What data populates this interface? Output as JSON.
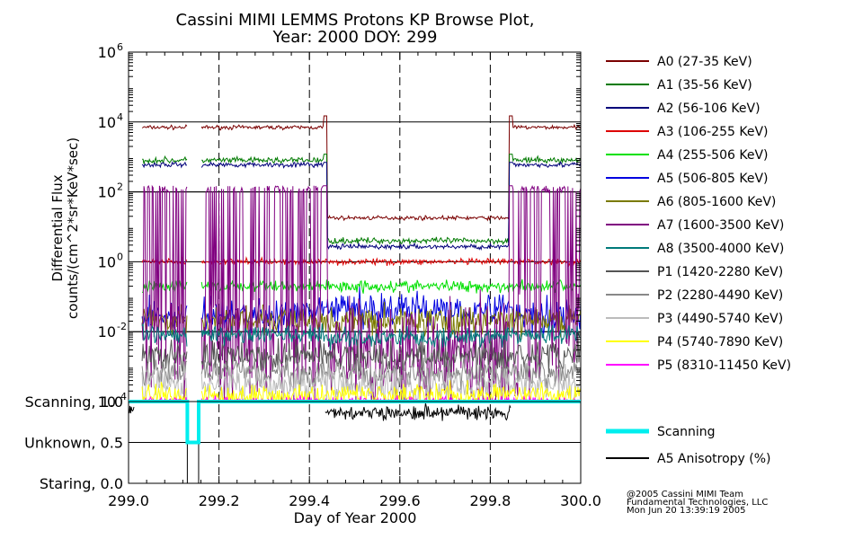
{
  "title": {
    "line1": "Cassini MIMI LEMMS Protons KP Browse Plot,",
    "line2": "Year: 2000 DOY: 299"
  },
  "credit": {
    "line1": "@2005 Cassini MIMI Team",
    "line2": "Fundamental Technologies, LLC",
    "line3": "Mon Jun 20 13:39:19 2005"
  },
  "chart_data": [
    {
      "type": "line",
      "panel": "flux",
      "ylabel_line1": "Differential Flux",
      "ylabel_line2": "counts/(cm^2*sr*KeV*sec)",
      "yscale": "log",
      "ylim": [
        0.0001,
        1000000
      ],
      "yticks": [
        {
          "base": "10",
          "exp": "-4",
          "value": 0.0001
        },
        {
          "base": "10",
          "exp": "-2",
          "value": 0.01
        },
        {
          "base": "10",
          "exp": "0",
          "value": 1
        },
        {
          "base": "10",
          "exp": "2",
          "value": 100
        },
        {
          "base": "10",
          "exp": "4",
          "value": 10000
        },
        {
          "base": "10",
          "exp": "6",
          "value": 1000000
        }
      ],
      "xlim": [
        299.0,
        300.0
      ],
      "data_gap": [
        299.13,
        299.16
      ],
      "mode_change": [
        299.435,
        299.845
      ],
      "series": [
        {
          "name": "A0 (27-35 KeV)",
          "color": "#7a0000",
          "level_high": 7000,
          "level_low": 18,
          "jitter": 0.04,
          "spike": 15000
        },
        {
          "name": "A1 (35-56 KeV)",
          "color": "#007a00",
          "level_high": 800,
          "level_low": 4,
          "jitter": 0.06,
          "spike": 1200
        },
        {
          "name": "A2 (56-106 KeV)",
          "color": "#00007a",
          "level_high": 600,
          "level_low": 2.7,
          "jitter": 0.05,
          "spike": 700
        },
        {
          "name": "A3 (106-255 KeV)",
          "color": "#dd0000",
          "level_high": 1.0,
          "level_low": 1.0,
          "jitter": 0.06,
          "spike": 1.0
        },
        {
          "name": "A4 (255-506 KeV)",
          "color": "#00e000",
          "level_high": 0.2,
          "level_low": 0.2,
          "jitter": 0.12,
          "spike": 0.2
        },
        {
          "name": "A5 (506-805 KeV)",
          "color": "#0000e0",
          "level_high": 0.03,
          "level_low": 0.045,
          "jitter": 0.35,
          "spike": 0.05
        },
        {
          "name": "A6 (805-1600 KeV)",
          "color": "#7a7a00",
          "level_high": 0.02,
          "level_low": 0.02,
          "jitter": 0.3,
          "spike": 0.02
        },
        {
          "name": "A7 (1600-3500 KeV)",
          "color": "#800080",
          "level_high": 0.003,
          "level_low": 0.003,
          "jitter": 1.2,
          "spike": 150
        },
        {
          "name": "A8 (3500-4000 KeV)",
          "color": "#007a7a",
          "level_high": 0.008,
          "level_low": 0.007,
          "jitter": 0.2,
          "spike": 0.008
        },
        {
          "name": "P1 (1420-2280 KeV)",
          "color": "#555555",
          "level_high": 0.002,
          "level_low": 0.002,
          "jitter": 0.3,
          "spike": 0.002
        },
        {
          "name": "P2 (2280-4490 KeV)",
          "color": "#888888",
          "level_high": 0.0007,
          "level_low": 0.0006,
          "jitter": 0.3,
          "spike": 0.0007
        },
        {
          "name": "P3 (4490-5740 KeV)",
          "color": "#bbbbbb",
          "level_high": 0.0003,
          "level_low": 0.0003,
          "jitter": 0.35,
          "spike": 0.0003
        },
        {
          "name": "P4 (5740-7890 KeV)",
          "color": "#ffff00",
          "level_high": 0.00015,
          "level_low": 0.00015,
          "jitter": 0.25,
          "spike": 0.00015
        },
        {
          "name": "P5 (8310-11450 KeV)",
          "color": "#ff00ff",
          "level_high": 0.0001,
          "level_low": 0.0001,
          "jitter": 0.1,
          "spike": 0.0001
        }
      ]
    },
    {
      "type": "line",
      "panel": "scanning",
      "xlabel": "Day of Year 2000",
      "xlim": [
        299.0,
        300.0
      ],
      "xticks": [
        "299.0",
        "299.2",
        "299.4",
        "299.6",
        "299.8",
        "300.0"
      ],
      "xtick_values": [
        299.0,
        299.2,
        299.4,
        299.6,
        299.8,
        300.0
      ],
      "ylim": [
        0.0,
        1.0
      ],
      "ytick_labels": [
        {
          "label": "Scanning, 1.0",
          "value": 1.0
        },
        {
          "label": "Unknown, 0.5",
          "value": 0.5
        },
        {
          "label": "Staring, 0.0",
          "value": 0.0
        }
      ],
      "series": [
        {
          "name": "Scanning",
          "color": "#00eeee",
          "points": [
            [
              299.0,
              1.0
            ],
            [
              299.13,
              1.0
            ],
            [
              299.13,
              0.5
            ],
            [
              299.155,
              0.5
            ],
            [
              299.155,
              1.0
            ],
            [
              300.0,
              1.0
            ]
          ]
        },
        {
          "name": "A5 Anisotropy (%)",
          "color": "#000000",
          "range": [
            299.435,
            299.845
          ],
          "level": 0.87,
          "jitter": 0.06
        }
      ]
    }
  ]
}
